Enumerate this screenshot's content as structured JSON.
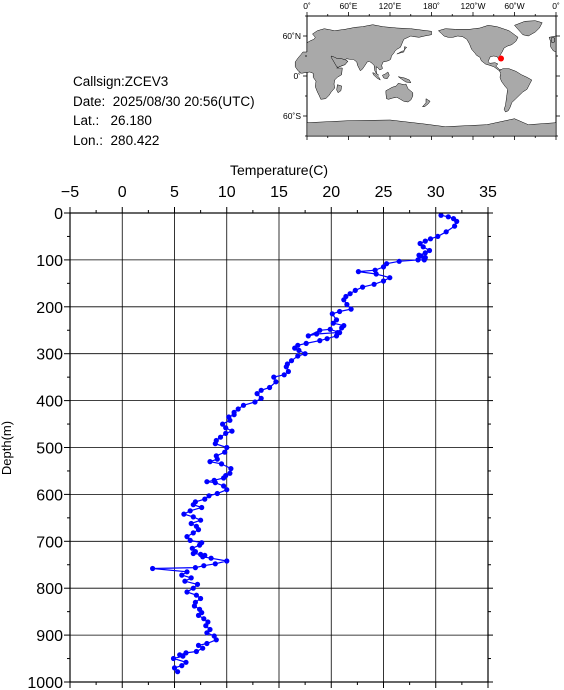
{
  "meta": {
    "callsign_label": "Callsign:",
    "callsign": "ZCEV3",
    "date_label": "Date:",
    "date": "2025/08/30 20:56(UTC)",
    "lat_label": "Lat.:",
    "lat": "26.180",
    "lon_label": "Lon.:",
    "lon": "280.422"
  },
  "map": {
    "lon_tick_labels": [
      "0˚",
      "60˚E",
      "120˚E",
      "180˚",
      "120˚W",
      "60˚W",
      "0˚"
    ],
    "lat_tick_labels": [
      "60˚N",
      "0˚",
      "60˚S"
    ],
    "ocean_color": "#ffffff",
    "land_color": "#a9a9a9",
    "marker_color": "#ff0000",
    "marker": {
      "lat": 26.18,
      "lon": 280.422
    }
  },
  "chart_data": {
    "type": "line",
    "title": "",
    "xlabel": "Temperature(C)",
    "ylabel": "Depth(m)",
    "xlim": [
      -5,
      35
    ],
    "ylim": [
      0,
      1000
    ],
    "x_ticks": [
      -5,
      0,
      5,
      10,
      15,
      20,
      25,
      30,
      35
    ],
    "y_ticks": [
      0,
      100,
      200,
      300,
      400,
      500,
      600,
      700,
      800,
      900,
      1000
    ],
    "x_axis_position": "top",
    "y_axis_inverted": true,
    "grid": true,
    "series_color": "#0000ff",
    "series": [
      {
        "x": [
          30.5,
          31.2,
          31.7,
          32.0,
          31.8,
          31.0,
          30.2,
          29.5,
          29.0,
          28.5,
          28.8,
          29.4,
          29.0,
          28.4,
          28.6,
          29.0,
          28.9,
          28.3,
          26.5,
          25.3,
          25.0,
          24.2,
          22.6,
          24.3,
          25.6,
          25.0,
          24.1,
          23.0,
          22.3,
          21.8,
          21.4,
          21.2,
          21.5,
          21.9,
          20.8,
          20.1,
          20.5,
          20.2,
          21.2,
          21.0,
          20.6,
          18.6,
          17.8,
          18.9,
          19.9,
          20.8,
          20.5,
          19.6,
          18.9,
          17.6,
          16.8,
          16.5,
          16.9,
          17.5,
          16.8,
          16.2,
          15.8,
          15.7,
          15.9,
          15.5,
          14.5,
          14.7,
          14.1,
          13.3,
          12.9,
          13.3,
          12.7,
          11.6,
          11.1,
          10.7,
          10.7,
          10.2,
          10.3,
          9.6,
          9.9,
          10.5,
          9.9,
          9.4,
          9.0,
          8.9,
          10.0,
          9.8,
          9.0,
          9.1,
          8.4,
          9.5,
          10.4,
          10.3,
          9.9,
          9.7,
          8.8,
          8.1,
          8.9,
          9.7,
          10.0,
          9.1,
          8.3,
          7.9,
          7.0,
          6.8,
          7.6,
          6.5,
          5.9,
          6.8,
          7.5,
          6.6,
          7.1,
          7.3,
          6.8,
          6.2,
          6.5,
          7.6,
          7.4,
          6.7,
          7.0,
          6.8,
          7.5,
          7.9,
          7.7,
          8.5,
          10.0,
          8.9,
          7.8,
          7.0,
          2.9,
          6.2,
          5.7,
          6.6,
          6.0,
          7.2,
          6.8,
          6.2,
          7.1,
          7.5,
          7.0,
          6.9,
          7.4,
          7.6,
          7.3,
          7.8,
          8.2,
          8.0,
          8.4,
          8.1,
          8.8,
          9.0,
          8.1,
          7.3,
          7.7,
          7.1,
          6.1,
          5.5,
          5.8,
          4.9,
          6.1,
          5.7,
          5.0,
          5.3
        ],
        "y": [
          5,
          8,
          12,
          18,
          28,
          40,
          50,
          55,
          60,
          65,
          72,
          80,
          85,
          90,
          92,
          95,
          100,
          100,
          103,
          108,
          115,
          122,
          125,
          130,
          138,
          145,
          152,
          158,
          165,
          172,
          178,
          185,
          195,
          205,
          210,
          215,
          228,
          235,
          240,
          245,
          255,
          258,
          262,
          250,
          248,
          255,
          262,
          268,
          272,
          278,
          282,
          288,
          293,
          300,
          305,
          315,
          322,
          328,
          338,
          345,
          350,
          360,
          372,
          378,
          385,
          395,
          403,
          410,
          418,
          425,
          430,
          435,
          442,
          450,
          458,
          465,
          470,
          478,
          485,
          492,
          500,
          510,
          518,
          525,
          530,
          535,
          545,
          555,
          560,
          565,
          570,
          573,
          575,
          582,
          590,
          598,
          603,
          610,
          616,
          622,
          628,
          635,
          642,
          648,
          655,
          662,
          668,
          675,
          682,
          690,
          698,
          703,
          708,
          715,
          722,
          726,
          728,
          730,
          733,
          736,
          742,
          748,
          752,
          756,
          758,
          765,
          772,
          778,
          785,
          792,
          800,
          808,
          815,
          822,
          830,
          838,
          845,
          852,
          858,
          865,
          872,
          880,
          888,
          895,
          902,
          910,
          918,
          922,
          928,
          935,
          938,
          942,
          945,
          950,
          958,
          965,
          970,
          978
        ]
      }
    ]
  }
}
